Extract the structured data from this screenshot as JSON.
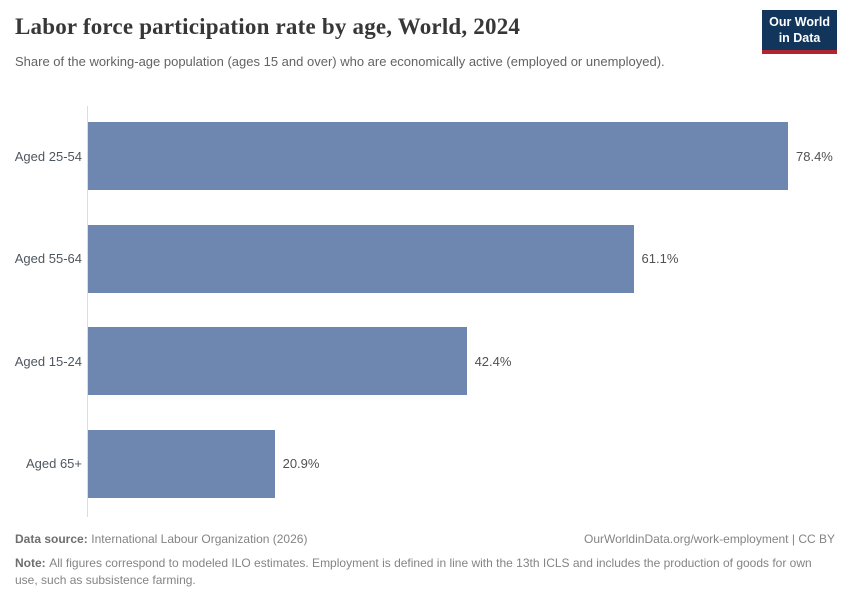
{
  "header": {
    "title": "Labor force participation rate by age, World, 2024",
    "subtitle": "Share of the working-age population (ages 15 and over) who are economically active (employed or unemployed).",
    "logo": {
      "line1": "Our World",
      "line2": "in Data"
    }
  },
  "chart_data": {
    "type": "bar",
    "orientation": "horizontal",
    "title": "Labor force participation rate by age, World, 2024",
    "categories": [
      "Aged 25-54",
      "Aged 55-64",
      "Aged 15-24",
      "Aged 65+"
    ],
    "values": [
      78.4,
      61.1,
      42.4,
      20.9
    ],
    "value_labels": [
      "78.4%",
      "61.1%",
      "42.4%",
      "20.9%"
    ],
    "unit": "%",
    "xlim": [
      0,
      78.4
    ],
    "grid": false,
    "legend": "none",
    "bar_color": "#6e87b0"
  },
  "footer": {
    "source_label": "Data source:",
    "source_value": "International Labour Organization (2026)",
    "url_text": "OurWorldinData.org/work-employment",
    "divider": "|",
    "license_text": "CC BY",
    "note_label": "Note:",
    "note_value": "All figures correspond to modeled ILO estimates. Employment is defined in line with the 13th ICLS and includes the production of goods for own use, such as subsistence farming."
  },
  "colors": {
    "bar": "#6e87b0",
    "logo_background": "#12355c",
    "logo_accent": "#b0262d",
    "axis_line": "#dcdcdc"
  }
}
